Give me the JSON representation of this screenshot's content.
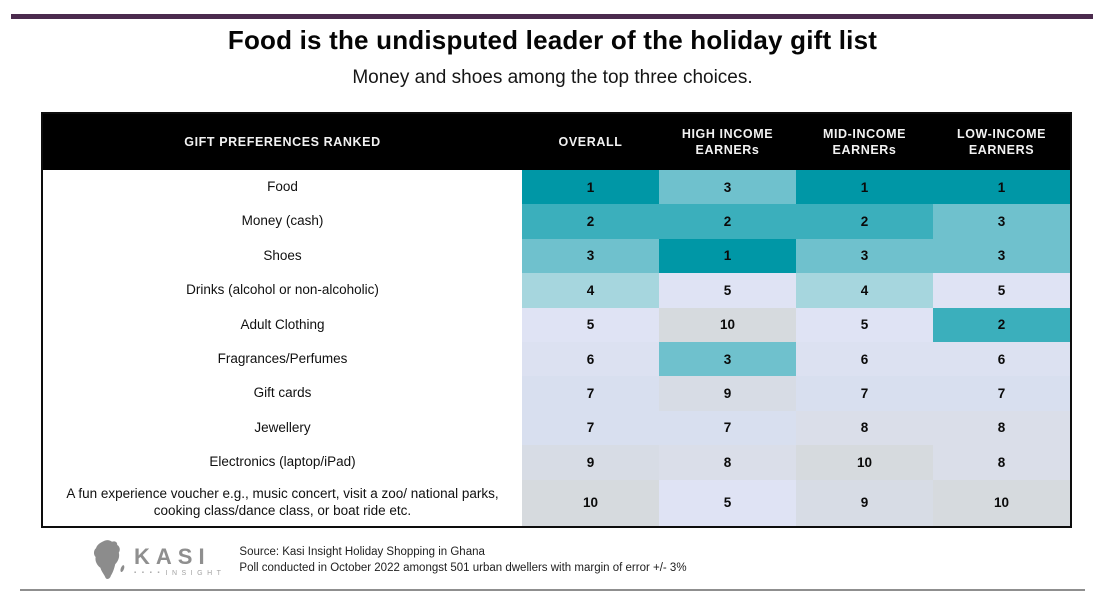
{
  "page": {
    "title": "Food is the undisputed leader of the holiday gift list",
    "subtitle": "Money and shoes among the top three choices."
  },
  "table": {
    "header": [
      "GIFT PREFERENCES RANKED",
      "OVERALL",
      "HIGH INCOME EARNERs",
      "MID-INCOME EARNERs",
      "LOW-INCOME EARNERS"
    ],
    "rows": [
      {
        "label": "Food",
        "ranks": [
          "1",
          "3",
          "1",
          "1"
        ]
      },
      {
        "label": "Money (cash)",
        "ranks": [
          "2",
          "2",
          "2",
          "3"
        ]
      },
      {
        "label": "Shoes",
        "ranks": [
          "3",
          "1",
          "3",
          "3"
        ]
      },
      {
        "label": "Drinks (alcohol or non-alcoholic)",
        "ranks": [
          "4",
          "5",
          "4",
          "5"
        ]
      },
      {
        "label": "Adult Clothing",
        "ranks": [
          "5",
          "10",
          "5",
          "2"
        ]
      },
      {
        "label": "Fragrances/Perfumes",
        "ranks": [
          "6",
          "3",
          "6",
          "6"
        ]
      },
      {
        "label": "Gift cards",
        "ranks": [
          "7",
          "9",
          "7",
          "7"
        ]
      },
      {
        "label": "Jewellery",
        "ranks": [
          "7",
          "7",
          "8",
          "8"
        ]
      },
      {
        "label": "Electronics (laptop/iPad)",
        "ranks": [
          "9",
          "8",
          "10",
          "8"
        ]
      },
      {
        "label": "A fun experience voucher e.g., music concert, visit a zoo/ national parks, cooking class/dance class, or boat ride etc.",
        "ranks": [
          "10",
          "5",
          "9",
          "10"
        ]
      }
    ]
  },
  "chart_data": {
    "type": "heatmap",
    "title": "Food is the undisputed leader of the holiday gift list",
    "subtitle": "Money and shoes among the top three choices.",
    "rows": [
      "Food",
      "Money (cash)",
      "Shoes",
      "Drinks (alcohol or non-alcoholic)",
      "Adult Clothing",
      "Fragrances/Perfumes",
      "Gift cards",
      "Jewellery",
      "Electronics (laptop/iPad)",
      "A fun experience voucher e.g., music concert, visit a zoo/ national parks, cooking class/dance class, or boat ride etc."
    ],
    "columns": [
      "OVERALL",
      "HIGH INCOME EARNERs",
      "MID-INCOME EARNERs",
      "LOW-INCOME EARNERS"
    ],
    "values": [
      [
        1,
        3,
        1,
        1
      ],
      [
        2,
        2,
        2,
        3
      ],
      [
        3,
        1,
        3,
        3
      ],
      [
        4,
        5,
        4,
        5
      ],
      [
        5,
        10,
        5,
        2
      ],
      [
        6,
        3,
        6,
        6
      ],
      [
        7,
        9,
        7,
        7
      ],
      [
        7,
        7,
        8,
        8
      ],
      [
        9,
        8,
        10,
        8
      ],
      [
        10,
        5,
        9,
        10
      ]
    ],
    "value_meaning": "gift preference rank (1 = top choice, 10 = lowest)",
    "value_range": [
      1,
      10
    ],
    "legend_position": "none",
    "grid": false
  },
  "colors": {
    "accent_bar": "#4b2b4e",
    "header_bg": "#000000",
    "header_text": "#f2f2f2",
    "bottom_divider": "#8f8f8f",
    "rank_scale": {
      "1": "#0097a6",
      "2": "#3bafbc",
      "3": "#6fc1cd",
      "4": "#a6d6de",
      "5": "#dfe3f4",
      "6": "#dce1f1",
      "7": "#d8dfef",
      "8": "#dadee9",
      "9": "#d7dce5",
      "10": "#d6dade"
    }
  },
  "footer": {
    "logo_brand": "KASI",
    "logo_sub": "INSIGHT",
    "logo_dots": "▪ ▪ ▪ ▪",
    "source_line1": "Source: Kasi Insight Holiday Shopping in Ghana",
    "source_line2": "Poll conducted in October 2022 amongst 501 urban dwellers with margin of error +/- 3%"
  }
}
